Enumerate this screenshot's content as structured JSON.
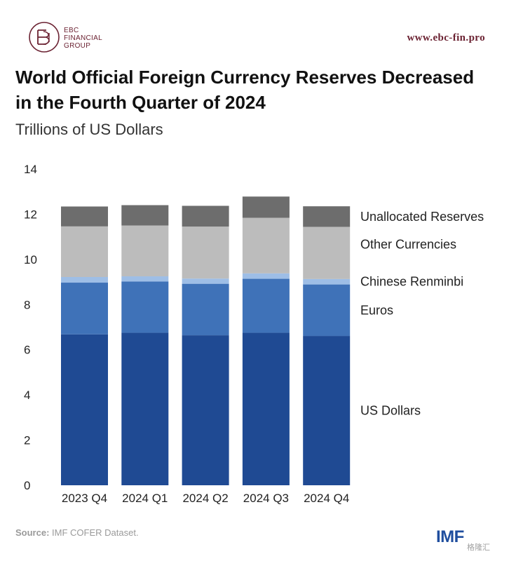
{
  "header": {
    "brand_line1": "EBC",
    "brand_line2": "FINANCIAL",
    "brand_line3": "GROUP",
    "url": "www.ebc-fin.pro"
  },
  "chart_data": {
    "type": "bar",
    "stacked": true,
    "title_line1": "World Official Foreign Currency Reserves Decreased",
    "title_line2": "in the Fourth Quarter of 2024",
    "subtitle": "Trillions of US Dollars",
    "categories": [
      "2023 Q4",
      "2024 Q1",
      "2024 Q2",
      "2024 Q3",
      "2024 Q4"
    ],
    "yticks": [
      "0",
      "2",
      "4",
      "6",
      "8",
      "10",
      "12",
      "14"
    ],
    "ylim": [
      0,
      14
    ],
    "grid": false,
    "legend_position": "right, inline with segments",
    "series": [
      {
        "name": "US Dollars",
        "color": "#1f4a93",
        "values": [
          6.68,
          6.75,
          6.64,
          6.75,
          6.61
        ]
      },
      {
        "name": "Euros",
        "color": "#3f72b8",
        "values": [
          2.29,
          2.27,
          2.28,
          2.39,
          2.28
        ]
      },
      {
        "name": "Chinese Renminbi",
        "color": "#9ebee6",
        "values": [
          0.25,
          0.23,
          0.23,
          0.24,
          0.24
        ]
      },
      {
        "name": "Other Currencies",
        "color": "#bcbcbc",
        "values": [
          2.24,
          2.25,
          2.3,
          2.46,
          2.31
        ]
      },
      {
        "name": "Unallocated Reserves",
        "color": "#6d6d6d",
        "values": [
          0.88,
          0.9,
          0.92,
          0.94,
          0.91
        ]
      }
    ]
  },
  "footer": {
    "source_label": "Source:",
    "source_text": "IMF COFER Dataset.",
    "imf_logo": "IMF",
    "watermark": "格隆汇"
  }
}
